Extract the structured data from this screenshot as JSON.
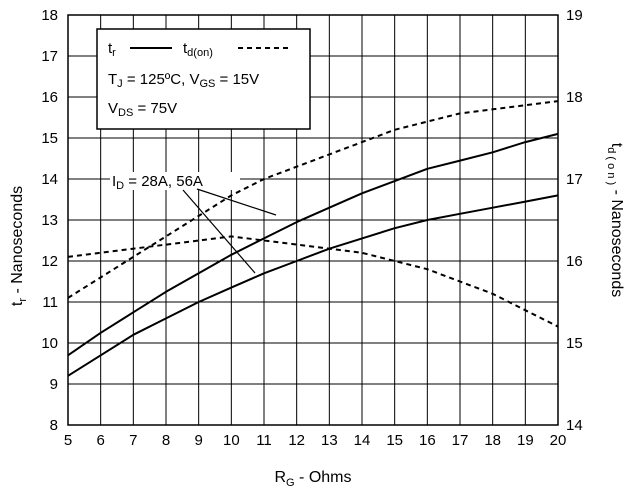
{
  "chart_data": {
    "type": "line",
    "x_axis": {
      "label_main": "R",
      "label_sub": "G",
      "label_rest": " - Ohms",
      "range": [
        5,
        20
      ],
      "ticks": [
        5,
        6,
        7,
        8,
        9,
        10,
        11,
        12,
        13,
        14,
        15,
        16,
        17,
        18,
        19,
        20
      ]
    },
    "y_left": {
      "label": "t",
      "label_sub": "r",
      "label_rest": " - Nanoseconds",
      "range": [
        8,
        18
      ],
      "ticks": [
        8,
        9,
        10,
        11,
        12,
        13,
        14,
        15,
        16,
        17,
        18
      ]
    },
    "y_right": {
      "label": "t",
      "label_sub": "d ( o n )",
      "label_rest": " - Nanoseconds",
      "range": [
        14,
        19
      ],
      "ticks": [
        14,
        15,
        16,
        17,
        18,
        19
      ]
    },
    "grid": true,
    "legend": {
      "placement": "top-left",
      "tr_label": "t",
      "tr_sub": "r",
      "td_label": "t",
      "td_sub": "d(on)",
      "cond1_a": "T",
      "cond1_a_sub": "J",
      "cond1_b": " = 125ºC,  V",
      "cond1_b_sub": "GS",
      "cond1_c": " = 15V",
      "cond2_a": "V",
      "cond2_a_sub": "DS",
      "cond2_b": " = 75V"
    },
    "annotation": {
      "a": "I",
      "a_sub": "D",
      "b": " = 28A, 56A"
    },
    "series": [
      {
        "axis": "left",
        "style": "solid",
        "x": [
          5,
          6,
          7,
          8,
          9,
          10,
          11,
          12,
          13,
          14,
          15,
          16,
          17,
          18,
          19,
          20
        ],
        "y": [
          9.7,
          10.25,
          10.75,
          11.25,
          11.7,
          12.15,
          12.55,
          12.95,
          13.3,
          13.65,
          13.95,
          14.25,
          14.45,
          14.65,
          14.9,
          15.1
        ]
      },
      {
        "axis": "left",
        "style": "solid",
        "x": [
          5,
          6,
          7,
          8,
          9,
          10,
          11,
          12,
          13,
          14,
          15,
          16,
          17,
          18,
          19,
          20
        ],
        "y": [
          9.2,
          9.7,
          10.2,
          10.6,
          11.0,
          11.35,
          11.7,
          12.0,
          12.3,
          12.55,
          12.8,
          13.0,
          13.15,
          13.3,
          13.45,
          13.6
        ]
      },
      {
        "axis": "right",
        "style": "dashed",
        "x": [
          5,
          6,
          7,
          8,
          9,
          10,
          11,
          12,
          13,
          14,
          15,
          16,
          17,
          18,
          19,
          20
        ],
        "y": [
          15.55,
          15.8,
          16.05,
          16.3,
          16.55,
          16.8,
          17.0,
          17.15,
          17.3,
          17.45,
          17.6,
          17.7,
          17.8,
          17.85,
          17.9,
          17.95
        ]
      },
      {
        "axis": "right",
        "style": "dashed",
        "x": [
          5,
          6,
          7,
          8,
          9,
          10,
          11,
          12,
          13,
          14,
          15,
          16,
          17,
          18,
          19,
          20
        ],
        "y": [
          16.05,
          16.1,
          16.15,
          16.2,
          16.25,
          16.3,
          16.25,
          16.2,
          16.15,
          16.1,
          16.0,
          15.9,
          15.75,
          15.6,
          15.4,
          15.2
        ]
      }
    ]
  }
}
